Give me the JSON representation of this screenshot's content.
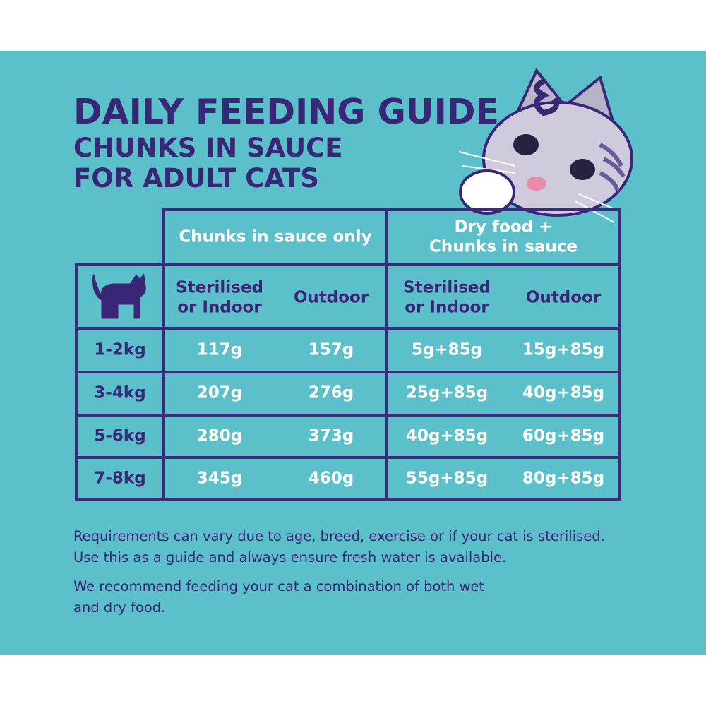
{
  "header": {
    "title": "DAILY FEEDING GUIDE",
    "subtitle_lines": [
      "CHUNKS IN SAUCE",
      "FOR ADULT CATS"
    ]
  },
  "table": {
    "groups": [
      [
        "Chunks in sauce only"
      ],
      [
        "Dry food +",
        "Chunks in sauce"
      ]
    ],
    "columns": [
      [
        "Sterilised",
        "or Indoor"
      ],
      [
        "Outdoor"
      ],
      [
        "Sterilised",
        "or Indoor"
      ],
      [
        "Outdoor"
      ]
    ],
    "rows": [
      [
        "1-2kg",
        "117g",
        "157g",
        "5g+85g",
        "15g+85g"
      ],
      [
        "3-4kg",
        "207g",
        "276g",
        "25g+85g",
        "40g+85g"
      ],
      [
        "5-6kg",
        "280g",
        "373g",
        "40g+85g",
        "60g+85g"
      ],
      [
        "7-8kg",
        "345g",
        "460g",
        "55g+85g",
        "80g+85g"
      ]
    ]
  },
  "notes": [
    "Requirements can vary due to age, breed, exercise or if your cat is sterilised. Use this as a guide and always ensure fresh water is available.",
    "We recommend feeding your cat a combination of both wet and dry food."
  ]
}
